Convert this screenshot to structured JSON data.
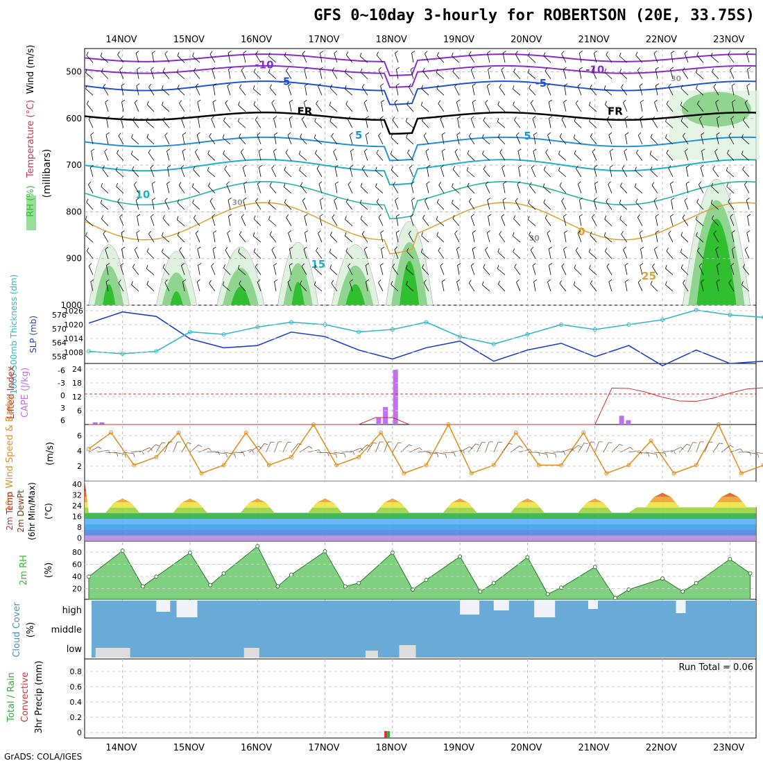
{
  "title": "GFS 0~10day 3-hourly for ROBERTSON (20E, 33.75S)",
  "footer": "GrADS: COLA/IGES",
  "dates": [
    "14NOV",
    "15NOV",
    "16NOV",
    "17NOV",
    "18NOV",
    "19NOV",
    "20NOV",
    "21NOV",
    "22NOV",
    "23NOV"
  ],
  "colors": {
    "rh_dark": "#2fbf2f",
    "rh_mid": "#8fd48f",
    "rh_light": "#dff2df",
    "temp_purple": "#8a2bd0",
    "temp_blue": "#2050d8",
    "temp_cyan": "#1eb0c8",
    "temp_orange": "#e0a030",
    "slp_blue": "#2040d0",
    "thickness_cyan": "#30b8c8",
    "lifted_red": "#d03030",
    "cape_purple": "#c070f0",
    "wind_orange": "#e09020",
    "cloud_blue": "#6aaad6"
  },
  "panels": {
    "upper": {
      "label_rh": "RH (%)",
      "label_temp": "Temperature (°C)",
      "label_wind": "Wind (m/s)",
      "unit": "(millibars)",
      "ylim": [
        450,
        1000
      ],
      "ticks": [
        "500",
        "600",
        "700",
        "800",
        "900",
        "1000"
      ],
      "contour_labels": [
        "-10",
        "-10",
        "-5",
        "-5",
        "FR",
        "FR",
        "5",
        "5",
        "10",
        "15",
        "0",
        "25",
        "30",
        "30",
        "30"
      ]
    },
    "slp": {
      "label_thickness": "1000-500mb Thickness (dm)",
      "label_slp": "SLP (mb)",
      "thickness_ticks": [
        "576",
        "570",
        "564",
        "558"
      ],
      "slp_ticks": [
        "1026",
        "1020",
        "1014",
        "1008"
      ]
    },
    "cape": {
      "label_li": "Lifted Index",
      "label_cape": "CAPE (J/kg)",
      "li_ticks": [
        "-6",
        "-3",
        "0",
        "3",
        "6"
      ],
      "cape_ticks": [
        "24",
        "18",
        "12",
        "6"
      ]
    },
    "wind10": {
      "label": "10m Wind Speed & Barbs",
      "unit": "(m/s)",
      "ticks": [
        "6",
        "4",
        "2"
      ]
    },
    "temp2m": {
      "label1": "2m Temp",
      "label2": "2m DewPt",
      "label3": "(6hr Min/Max)",
      "unit": "(°C)",
      "ticks": [
        "40",
        "32",
        "24",
        "16",
        "8",
        "0"
      ]
    },
    "rh2m": {
      "label": "2m RH",
      "unit": "(%)",
      "ticks": [
        "80",
        "60",
        "40",
        "20"
      ]
    },
    "cloud": {
      "label": "Cloud Cover",
      "unit": "(%)",
      "levels": [
        "high",
        "middle",
        "low"
      ]
    },
    "precip": {
      "label_total": "Total / Rain",
      "label_conv": "Convective",
      "label": "3hr Precip (mm)",
      "run_total": "Run Total = 0.06",
      "ticks": [
        "0.8",
        "0.6",
        "0.4",
        "0.2",
        "0"
      ]
    }
  },
  "chart_data": [
    {
      "type": "line",
      "title": "SLP (mb)",
      "ylim": [
        1004,
        1030
      ],
      "x_days": [
        0,
        0.5,
        1,
        1.5,
        2,
        2.5,
        3,
        3.5,
        4,
        4.5,
        5,
        5.5,
        6,
        6.5,
        7,
        7.5,
        8,
        8.5,
        9,
        9.5,
        10
      ],
      "values": [
        1022,
        1027,
        1025,
        1015,
        1011,
        1012,
        1018,
        1016,
        1010,
        1006,
        1011,
        1014,
        1005,
        1010,
        1013,
        1007,
        1012,
        1003,
        1010,
        1004,
        1005
      ]
    },
    {
      "type": "line",
      "title": "1000-500mb Thickness (dm)",
      "ylim": [
        556,
        580
      ],
      "x_days": [
        0,
        0.5,
        1,
        1.5,
        2,
        2.5,
        3,
        3.5,
        4,
        4.5,
        5,
        5.5,
        6,
        6.5,
        7,
        7.5,
        8,
        8.5,
        9,
        9.5,
        10
      ],
      "values": [
        561,
        560,
        561,
        569,
        568,
        571,
        573,
        572,
        569,
        570,
        573,
        567,
        564,
        568,
        572,
        570,
        572,
        574,
        578,
        576,
        575
      ]
    },
    {
      "type": "bar",
      "title": "CAPE (J/kg)",
      "x_days": [
        0.1,
        0.2,
        4.3,
        4.4,
        4.55,
        7.9,
        8.0
      ],
      "values": [
        1,
        1,
        3,
        8,
        25,
        4,
        2
      ]
    },
    {
      "type": "line",
      "title": "10m Wind Speed",
      "ylim": [
        0,
        7
      ],
      "x_days": [
        0,
        0.33,
        0.67,
        1,
        1.33,
        1.67,
        2,
        2.33,
        2.67,
        3,
        3.33,
        3.67,
        4,
        4.33,
        4.67,
        5,
        5.33,
        5.67,
        6,
        6.33,
        6.67,
        7,
        7.33,
        7.67,
        8,
        8.33,
        8.67,
        9,
        9.33,
        9.67,
        10
      ],
      "values": [
        4,
        6,
        2,
        3,
        6,
        1,
        2,
        6,
        2,
        3,
        7,
        2,
        3,
        6,
        1,
        2,
        7,
        1,
        2,
        6,
        2,
        2,
        6,
        1,
        2,
        5,
        1,
        2,
        7,
        1,
        2
      ]
    },
    {
      "type": "area",
      "title": "2m RH",
      "ylim": [
        10,
        100
      ],
      "x_days": [
        0,
        0.5,
        0.8,
        1,
        1.5,
        1.8,
        2,
        2.5,
        2.8,
        3,
        3.5,
        3.8,
        4,
        4.5,
        4.8,
        5,
        5.5,
        5.8,
        6,
        6.5,
        6.8,
        7,
        7.5,
        7.8,
        8,
        8.5,
        8.8,
        9,
        9.5,
        9.8
      ],
      "values": [
        45,
        85,
        30,
        45,
        82,
        32,
        50,
        92,
        30,
        48,
        84,
        30,
        35,
        82,
        25,
        40,
        76,
        22,
        35,
        75,
        18,
        28,
        60,
        12,
        25,
        42,
        22,
        35,
        72,
        50
      ]
    }
  ]
}
